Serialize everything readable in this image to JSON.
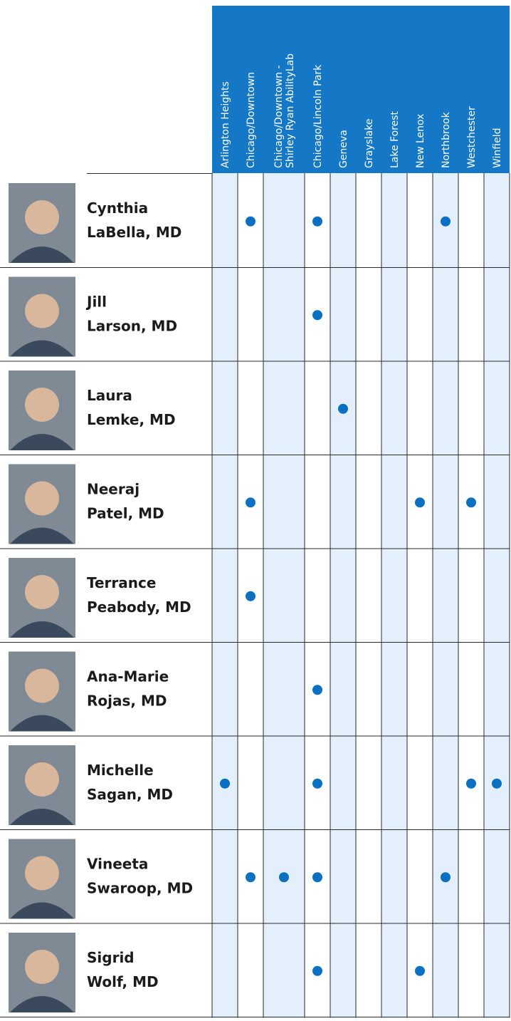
{
  "table": {
    "columns": [
      [
        "Arlington Heights"
      ],
      [
        "Chicago/Downtown"
      ],
      [
        "Chicago/Downtown -",
        "Shirley Ryan AbilityLab"
      ],
      [
        "Chicago/Lincoln Park"
      ],
      [
        "Geneva"
      ],
      [
        "Grayslake"
      ],
      [
        "Lake Forest"
      ],
      [
        "New Lenox"
      ],
      [
        "Northbrook"
      ],
      [
        "Westchester"
      ],
      [
        "Winfield"
      ]
    ],
    "rows": [
      {
        "first": "Cynthia",
        "last": "LaBella, MD",
        "locations": [
          1,
          3,
          8
        ]
      },
      {
        "first": "Jill",
        "last": "Larson, MD",
        "locations": [
          3
        ]
      },
      {
        "first": "Laura",
        "last": "Lemke, MD",
        "locations": [
          4
        ]
      },
      {
        "first": "Neeraj",
        "last": "Patel, MD",
        "locations": [
          1,
          7,
          9
        ]
      },
      {
        "first": "Terrance",
        "last": "Peabody, MD",
        "locations": [
          1
        ]
      },
      {
        "first": "Ana-Marie",
        "last": "Rojas, MD",
        "locations": [
          3
        ]
      },
      {
        "first": "Michelle",
        "last": "Sagan, MD",
        "locations": [
          0,
          3,
          9,
          10
        ]
      },
      {
        "first": "Vineeta",
        "last": "Swaroop, MD",
        "locations": [
          1,
          2,
          3,
          8
        ]
      },
      {
        "first": "Sigrid",
        "last": "Wolf, MD",
        "locations": [
          3,
          7
        ]
      }
    ]
  }
}
